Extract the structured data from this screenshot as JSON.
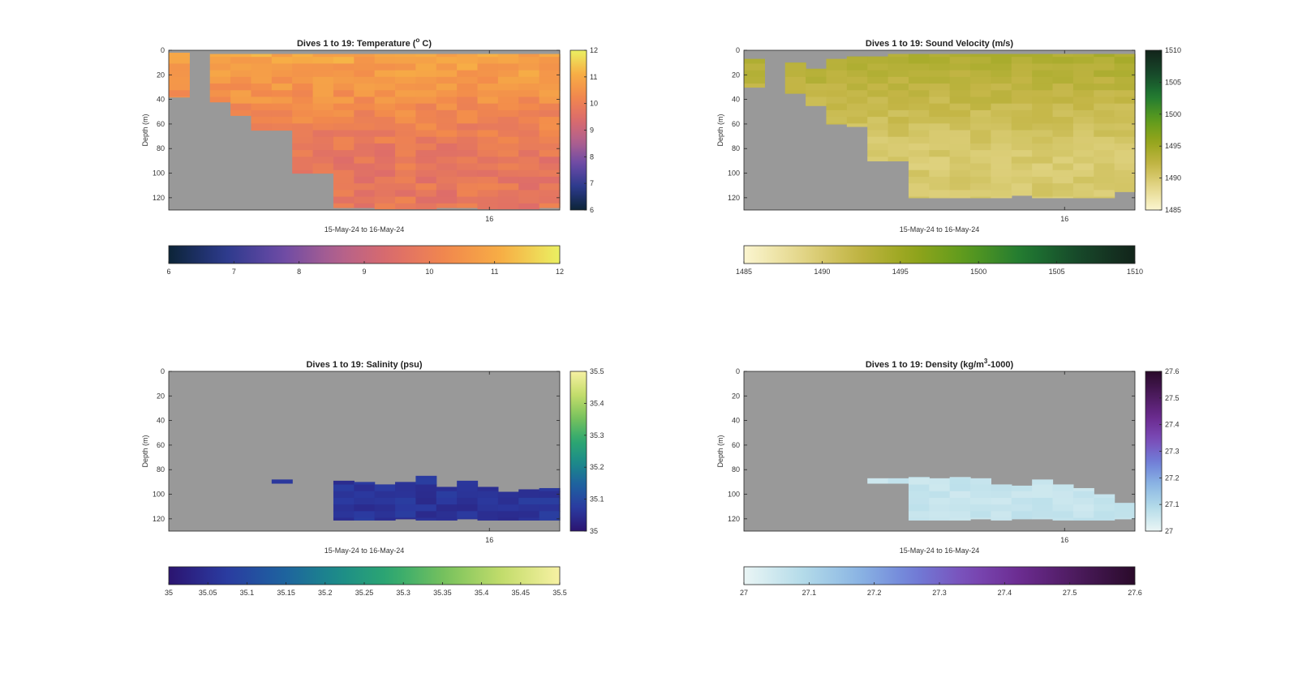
{
  "figure": {
    "background": "#ffffff",
    "nodata_color": "#999999"
  },
  "chart_data": [
    {
      "type": "heatmap",
      "title": "Dives 1 to 19: Temperature (",
      "title_sup": "o",
      "title_end": " C)",
      "ylabel": "Depth (m)",
      "xlabel": "15-May-24 to 16-May-24",
      "xtick_label": "16",
      "ylim": [
        0,
        130
      ],
      "y_ticks": [
        0,
        20,
        40,
        60,
        80,
        100,
        120
      ],
      "columns": 19,
      "valid_top_depth": [
        2,
        999,
        3,
        3,
        3,
        3,
        3,
        3,
        3,
        3,
        3,
        3,
        3,
        3,
        3,
        3,
        3,
        3,
        3
      ],
      "valid_bottom_depth": [
        38,
        999,
        42,
        53,
        65,
        65,
        100,
        100,
        128,
        128,
        129,
        129,
        129,
        128,
        128,
        129,
        129,
        129,
        128
      ],
      "field": {
        "surface": 11.0,
        "deep": 9.8,
        "noise": 0.35
      },
      "colorbar": {
        "range": [
          6,
          12
        ],
        "ticks": [
          6,
          7,
          8,
          9,
          10,
          11,
          12
        ],
        "tick_labels": [
          "6",
          "7",
          "8",
          "9",
          "10",
          "11",
          "12"
        ],
        "colors": [
          "#0c2437",
          "#2b3a8c",
          "#6a4aa6",
          "#b0608e",
          "#dd6c6a",
          "#f2894c",
          "#f7b045",
          "#eaf062"
        ]
      }
    },
    {
      "type": "heatmap",
      "title": "Dives 1 to 19: Sound Velocity (m/s)",
      "title_sup": "",
      "title_end": "",
      "ylabel": "Depth (m)",
      "xlabel": "15-May-24 to 16-May-24",
      "xtick_label": "16",
      "ylim": [
        0,
        130
      ],
      "y_ticks": [
        0,
        20,
        40,
        60,
        80,
        100,
        120
      ],
      "columns": 19,
      "valid_top_depth": [
        7,
        999,
        10,
        15,
        7,
        5,
        5,
        3,
        3,
        3,
        3,
        3,
        3,
        3,
        3,
        3,
        3,
        3,
        3
      ],
      "valid_bottom_depth": [
        30,
        999,
        35,
        45,
        60,
        62,
        90,
        90,
        120,
        120,
        120,
        120,
        120,
        118,
        120,
        120,
        120,
        120,
        115
      ],
      "field": {
        "surface": 1494.0,
        "deep": 1490.0,
        "noise": 0.8
      },
      "colorbar": {
        "range": [
          1485,
          1510
        ],
        "ticks": [
          1485,
          1490,
          1495,
          1500,
          1505,
          1510
        ],
        "tick_labels": [
          "1485",
          "1490",
          "1495",
          "1500",
          "1505",
          "1510"
        ],
        "colors": [
          "#fbf5d0",
          "#e4d78a",
          "#c3b545",
          "#95a51a",
          "#5a9a1e",
          "#1f7a32",
          "#17472a",
          "#12241a"
        ]
      }
    },
    {
      "type": "heatmap",
      "title": "Dives 1 to 19: Salinity (psu)",
      "title_sup": "",
      "title_end": "",
      "ylabel": "Depth (m)",
      "xlabel": "15-May-24 to 16-May-24",
      "xtick_label": "16",
      "ylim": [
        0,
        130
      ],
      "y_ticks": [
        0,
        20,
        40,
        60,
        80,
        100,
        120
      ],
      "columns": 19,
      "valid_top_depth": [
        999,
        999,
        999,
        999,
        999,
        88,
        999,
        999,
        89,
        90,
        92,
        90,
        85,
        94,
        89,
        94,
        98,
        96,
        95
      ],
      "valid_bottom_depth": [
        0,
        0,
        0,
        0,
        0,
        91,
        0,
        0,
        121,
        121,
        121,
        120,
        121,
        121,
        120,
        121,
        121,
        121,
        121
      ],
      "field": {
        "surface": 35.02,
        "deep": 35.06,
        "noise": 0.02
      },
      "colorbar": {
        "range": [
          35,
          35.5
        ],
        "ticks": [
          35,
          35.05,
          35.1,
          35.15,
          35.2,
          35.25,
          35.3,
          35.35,
          35.4,
          35.45,
          35.5
        ],
        "tick_labels": [
          "35",
          "35.05",
          "35.1",
          "35.15",
          "35.2",
          "35.25",
          "35.3",
          "35.35",
          "35.4",
          "35.45",
          "35.5"
        ],
        "colors": [
          "#2b1470",
          "#2b3aa0",
          "#1e60a0",
          "#1b8a8a",
          "#2ea96f",
          "#7cc35c",
          "#c5dd6c",
          "#f7f1a3"
        ]
      }
    },
    {
      "type": "heatmap",
      "title": "Dives 1 to 19: Density (kg/m",
      "title_sup": "3",
      "title_end": "-1000)",
      "ylabel": "Depth (m)",
      "xlabel": "15-May-24 to 16-May-24",
      "xtick_label": "16",
      "ylim": [
        0,
        130
      ],
      "y_ticks": [
        0,
        20,
        40,
        60,
        80,
        100,
        120
      ],
      "columns": 19,
      "valid_top_depth": [
        999,
        999,
        999,
        999,
        999,
        999,
        87,
        87,
        86,
        87,
        86,
        87,
        92,
        93,
        88,
        92,
        95,
        100,
        107
      ],
      "valid_bottom_depth": [
        0,
        0,
        0,
        0,
        0,
        0,
        91,
        91,
        121,
        121,
        121,
        120,
        121,
        120,
        120,
        121,
        121,
        121,
        120
      ],
      "field": {
        "surface": 27.03,
        "deep": 27.06,
        "noise": 0.015
      },
      "colorbar": {
        "range": [
          27,
          27.6
        ],
        "ticks": [
          27,
          27.1,
          27.2,
          27.3,
          27.4,
          27.5,
          27.6
        ],
        "tick_labels": [
          "27",
          "27.1",
          "27.2",
          "27.3",
          "27.4",
          "27.5",
          "27.6"
        ],
        "colors": [
          "#eaf5f5",
          "#b6dde9",
          "#8cb8e4",
          "#6f80d9",
          "#7b4cb8",
          "#6a2a8e",
          "#4a1a5a",
          "#2a0a2a"
        ]
      }
    }
  ]
}
